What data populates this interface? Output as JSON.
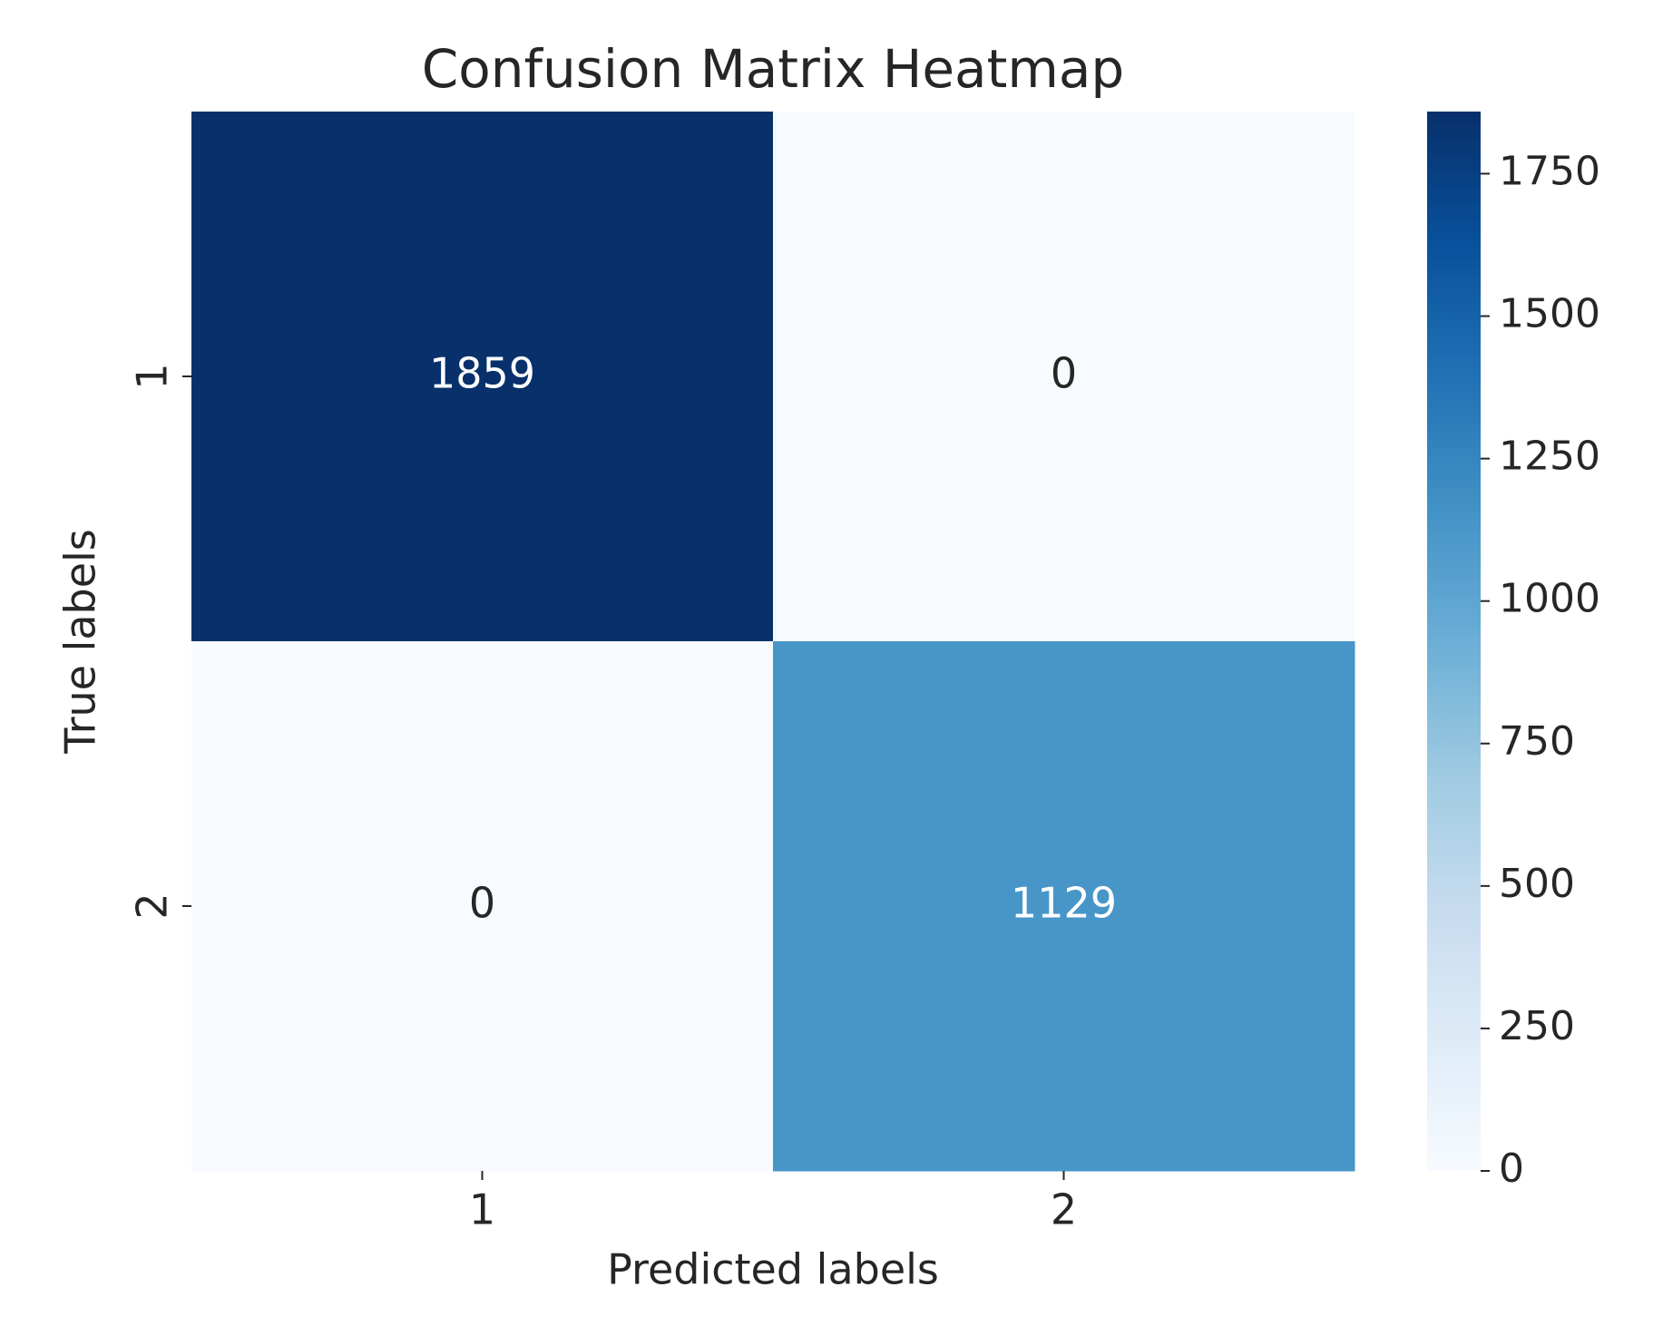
{
  "chart_data": {
    "type": "heatmap",
    "title": "Confusion Matrix Heatmap",
    "x_label": "Predicted labels",
    "y_label": "True labels",
    "x_categories": [
      "1",
      "2"
    ],
    "y_categories": [
      "1",
      "2"
    ],
    "values": [
      [
        1859,
        0
      ],
      [
        0,
        1129
      ]
    ],
    "colormap": [
      "#f7fbff",
      "#deebf7",
      "#c6dbef",
      "#9ecae1",
      "#6baed6",
      "#4292c6",
      "#2171b5",
      "#08519c",
      "#08306b"
    ],
    "clim": [
      0,
      1859
    ],
    "cticks": [
      0,
      250,
      500,
      750,
      1000,
      1250,
      1500,
      1750
    ]
  }
}
